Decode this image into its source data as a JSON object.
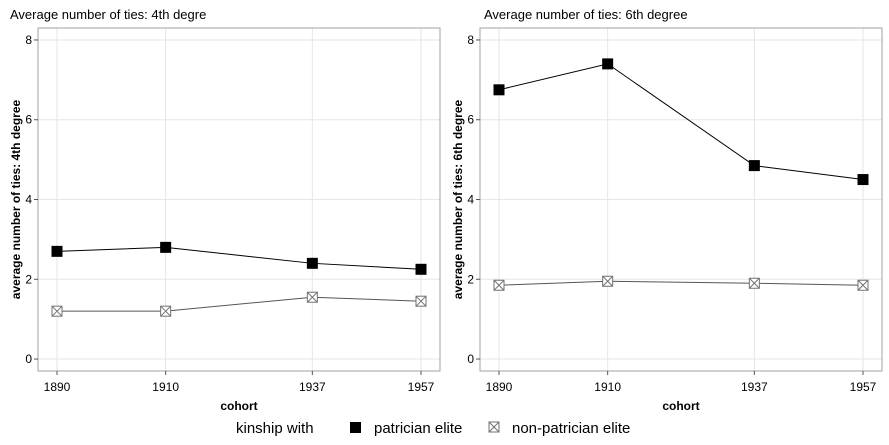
{
  "legend": {
    "prefix": "kinship with",
    "entries": [
      {
        "label": "patrician elite",
        "marker": "filled-square"
      },
      {
        "label": "non-patrician elite",
        "marker": "crossed-square"
      }
    ]
  },
  "colors": {
    "patrician": "#000000",
    "non_patrician": "#707070",
    "frame": "#a0a0a0",
    "grid": "#e6e6e6"
  },
  "chart_data": [
    {
      "type": "line",
      "title": "Average number of ties: 4th degre",
      "xlabel": "cohort",
      "ylabel": "average number of ties: 4th degree",
      "x": [
        1890,
        1910,
        1937,
        1957
      ],
      "xticks": [
        "1890",
        "1910",
        "1937",
        "1957"
      ],
      "yticks": [
        "0",
        "2",
        "4",
        "6",
        "8"
      ],
      "ylim": [
        -0.3,
        8.3
      ],
      "grid": true,
      "series": [
        {
          "name": "patrician elite",
          "values": [
            2.7,
            2.8,
            2.4,
            2.25
          ]
        },
        {
          "name": "non-patrician elite",
          "values": [
            1.2,
            1.2,
            1.55,
            1.45
          ]
        }
      ]
    },
    {
      "type": "line",
      "title": "Average number of ties: 6th degree",
      "xlabel": "cohort",
      "ylabel": "average number of ties: 6th degree",
      "x": [
        1890,
        1910,
        1937,
        1957
      ],
      "xticks": [
        "1890",
        "1910",
        "1937",
        "1957"
      ],
      "yticks": [
        "0",
        "2",
        "4",
        "6",
        "8"
      ],
      "ylim": [
        -0.3,
        8.3
      ],
      "grid": true,
      "series": [
        {
          "name": "patrician elite",
          "values": [
            6.75,
            7.4,
            4.85,
            4.5
          ]
        },
        {
          "name": "non-patrician elite",
          "values": [
            1.85,
            1.95,
            1.9,
            1.85
          ]
        }
      ]
    }
  ]
}
